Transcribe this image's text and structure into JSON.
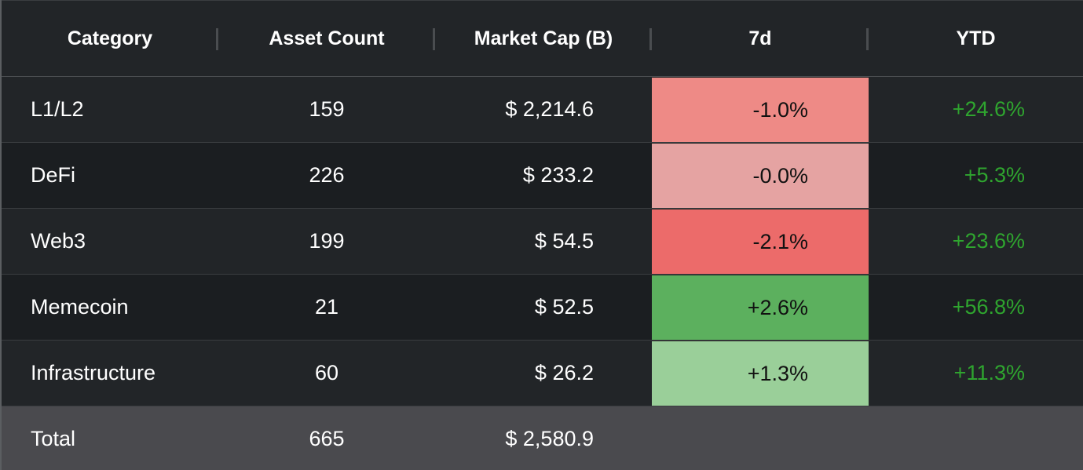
{
  "columns": {
    "category": "Category",
    "asset_count": "Asset Count",
    "market_cap": "Market Cap (B)",
    "d7": "7d",
    "ytd": "YTD"
  },
  "rows": [
    {
      "category": "L1/L2",
      "asset_count": "159",
      "market_cap": "$ 2,214.6",
      "d7": "-1.0%",
      "ytd": "+24.6%",
      "d7_color": "#ee8a86"
    },
    {
      "category": "DeFi",
      "asset_count": "226",
      "market_cap": "$ 233.2",
      "d7": "-0.0%",
      "ytd": "+5.3%",
      "d7_color": "#e5a3a2"
    },
    {
      "category": "Web3",
      "asset_count": "199",
      "market_cap": "$ 54.5",
      "d7": "-2.1%",
      "ytd": "+23.6%",
      "d7_color": "#ec6b6a"
    },
    {
      "category": "Memecoin",
      "asset_count": "21",
      "market_cap": "$ 52.5",
      "d7": "+2.6%",
      "ytd": "+56.8%",
      "d7_color": "#5cb05e"
    },
    {
      "category": "Infrastructure",
      "asset_count": "60",
      "market_cap": "$ 26.2",
      "d7": "+1.3%",
      "ytd": "+11.3%",
      "d7_color": "#9acf99"
    }
  ],
  "total": {
    "category": "Total",
    "asset_count": "665",
    "market_cap": "$ 2,580.9"
  },
  "colors": {
    "positive_text": "#2fa52f",
    "background": "#1b1e21",
    "total_row": "#4a4a4e"
  }
}
